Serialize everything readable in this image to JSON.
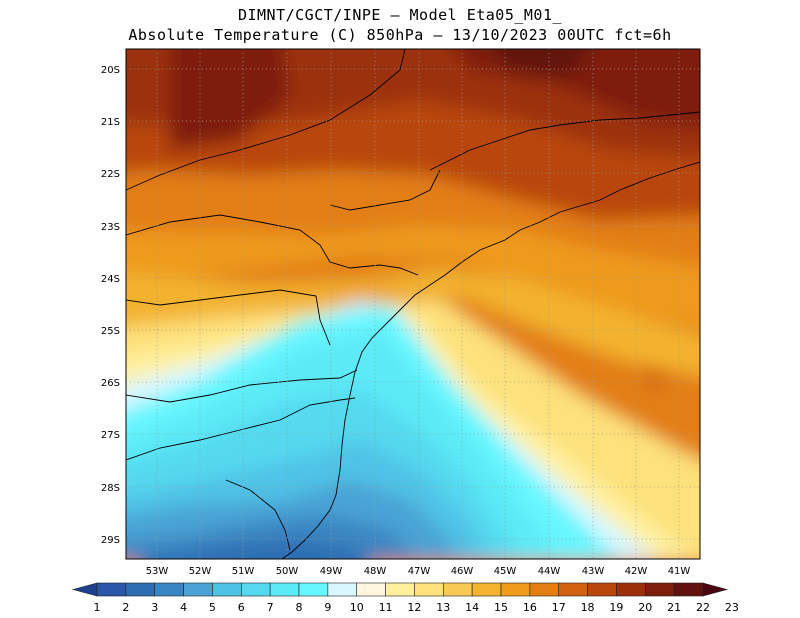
{
  "header": {
    "line1": "DIMNT/CGCT/INPE –  Model Eta05_M01_",
    "line2": "Absolute Temperature (C) 850hPa –  13/10/2023 00UTC fct=6h"
  },
  "axes": {
    "lat_labels": [
      "20S",
      "21S",
      "22S",
      "23S",
      "24S",
      "25S",
      "26S",
      "27S",
      "28S",
      "29S"
    ],
    "lon_labels": [
      "53W",
      "52W",
      "51W",
      "50W",
      "49W",
      "48W",
      "47W",
      "46W",
      "45W",
      "44W",
      "43W",
      "42W",
      "41W"
    ]
  },
  "colorbar": {
    "labels": [
      "1",
      "2",
      "3",
      "4",
      "5",
      "6",
      "7",
      "8",
      "9",
      "10",
      "11",
      "12",
      "13",
      "14",
      "15",
      "16",
      "17",
      "18",
      "19",
      "20",
      "21",
      "22",
      "23"
    ],
    "colors": [
      "#1f3f8f",
      "#2a57a8",
      "#2f6db2",
      "#3a86c2",
      "#4aa3d4",
      "#4fc3e6",
      "#55d9ef",
      "#5ceaf6",
      "#66f6ff",
      "#d8f7ff",
      "#fff6df",
      "#fff0a0",
      "#fde17a",
      "#f8c955",
      "#f3b22f",
      "#ee9a1b",
      "#e27e14",
      "#d2620f",
      "#b9460c",
      "#9c300b",
      "#7e1f0d",
      "#61120f",
      "#4a0712"
    ]
  },
  "map": {
    "lat_range": [
      "29.4S",
      "19.8S"
    ],
    "lon_range": [
      "53.8W",
      "40.4W"
    ],
    "grid": true
  }
}
